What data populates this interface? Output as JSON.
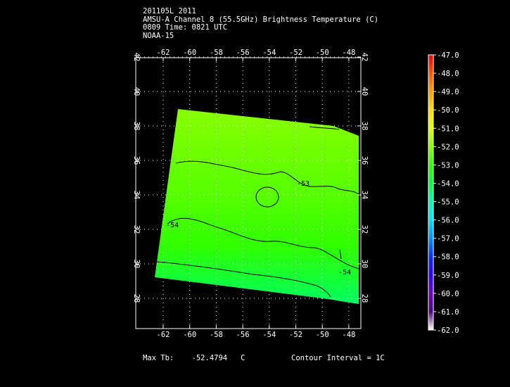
{
  "header": {
    "line1": "201105L 2011",
    "line2": "AMSU-A Channel 8 (55.5GHz) Brightness Temperature (C)",
    "line3": "0809 Time: 0821 UTC",
    "line4": "NOAA-15"
  },
  "map": {
    "lon_ticks": [
      "-62",
      "-60",
      "-58",
      "-56",
      "-54",
      "-52",
      "-50",
      "-48"
    ],
    "lat_ticks": [
      "28",
      "30",
      "32",
      "34",
      "36",
      "38",
      "40",
      "42"
    ],
    "contour_labels": [
      "-53",
      "-54",
      "-54"
    ]
  },
  "colorbar": {
    "labels": [
      "-47.0",
      "-48.0",
      "-49.0",
      "-50.0",
      "-51.0",
      "-52.0",
      "-53.0",
      "-54.0",
      "-55.0",
      "-56.0",
      "-57.0",
      "-58.0",
      "-59.0",
      "-60.0",
      "-61.0",
      "-62.0"
    ],
    "colors": [
      "#ff0000",
      "#ff5500",
      "#ffa000",
      "#ffdd00",
      "#e0ff00",
      "#88ff00",
      "#30ff00",
      "#00ff40",
      "#00ffb0",
      "#00e0ff",
      "#0090ff",
      "#0030ff",
      "#3000ff",
      "#7000c0",
      "#500080",
      "#ffffff"
    ]
  },
  "footer": {
    "max_tb": "Max Tb:    -52.4794   C",
    "contour": "Contour Interval = 1C"
  }
}
